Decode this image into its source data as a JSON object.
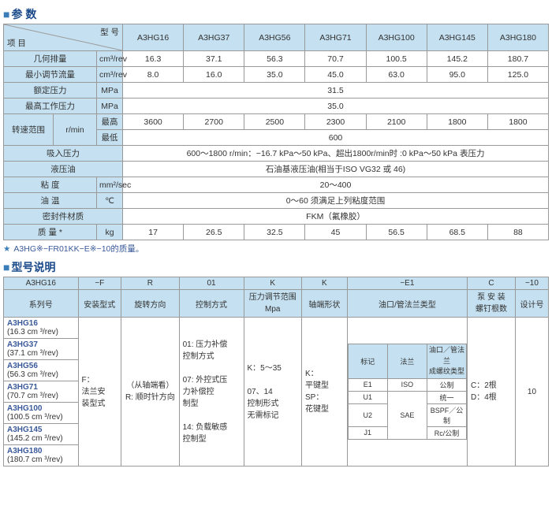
{
  "section1_title": "参 数",
  "t1": {
    "diag_top": "型 号",
    "diag_bot": "项 目",
    "models": [
      "A3HG16",
      "A3HG37",
      "A3HG56",
      "A3HG71",
      "A3HG100",
      "A3HG145",
      "A3HG180"
    ],
    "rows": {
      "geom_disp": {
        "label": "几何排量",
        "unit": "cm³/rev",
        "vals": [
          "16.3",
          "37.1",
          "56.3",
          "70.7",
          "100.5",
          "145.2",
          "180.7"
        ]
      },
      "min_adj": {
        "label": "最小调节流量",
        "unit": "cm³/rev",
        "vals": [
          "8.0",
          "16.0",
          "35.0",
          "45.0",
          "63.0",
          "95.0",
          "125.0"
        ]
      },
      "rated_p": {
        "label": "额定压力",
        "unit": "MPa",
        "val": "31.5"
      },
      "max_p": {
        "label": "最高工作压力",
        "unit": "MPa",
        "val": "35.0"
      },
      "speed": {
        "label": "转速范围",
        "unit": "r/min",
        "sub_hi": "最高",
        "sub_lo": "最低",
        "hi": [
          "3600",
          "2700",
          "2500",
          "2300",
          "2100",
          "1800",
          "1800"
        ],
        "lo": "600"
      },
      "suction": {
        "label": "吸入压力",
        "val": "600～1800 r/min：−16.7 kPa～50 kPa、超出1800r/min时 :0 kPa～50 kPa 表压力"
      },
      "oil": {
        "label": "液压油",
        "val": "石油基液压油(相当于ISO VG32 或 46)"
      },
      "visc": {
        "label": "粘  度",
        "unit": "mm²/sec",
        "val": "20～400"
      },
      "temp": {
        "label": "油  温",
        "unit": "℃",
        "val": "0～60 须满足上列粘度范围"
      },
      "seal": {
        "label": "密封件材质",
        "val": "FKM（氟橡胶）"
      },
      "mass": {
        "label": "质  量 *",
        "unit": "kg",
        "vals": [
          "17",
          "26.5",
          "32.5",
          "45",
          "56.5",
          "68.5",
          "88"
        ]
      }
    }
  },
  "footnote": "A3HG※−FR01KK−E※−10的质量。",
  "section2_title": "型号说明",
  "t2": {
    "headers": [
      "A3HG16",
      "−F",
      "R",
      "01",
      "K",
      "K",
      "−E1",
      "C",
      "−10"
    ],
    "row2": [
      "系列号",
      "安装型式",
      "旋转方向",
      "控制方式",
      "压力调节范围\nMpa",
      "轴端形状",
      "油口/管法兰类型",
      "泵 安 装\n螺钉根数",
      "设计号"
    ],
    "series": [
      {
        "n": "A3HG16",
        "s": "(16.3 cm ³/rev)"
      },
      {
        "n": "A3HG37",
        "s": "(37.1 cm ³/rev)"
      },
      {
        "n": "A3HG56",
        "s": "(56.3 cm ³/rev)"
      },
      {
        "n": "A3HG71",
        "s": "(70.7 cm ³/rev)"
      },
      {
        "n": "A3HG100",
        "s": "(100.5 cm ³/rev)"
      },
      {
        "n": "A3HG145",
        "s": "(145.2 cm ³/rev)"
      },
      {
        "n": "A3HG180",
        "s": "(180.7 cm ³/rev)"
      }
    ],
    "mount": "F：\n法兰安\n装型式",
    "rot": "（从轴端看）\nR: 顺时针方向",
    "ctrl": "01: 压力补偿\n控制方式\n\n07: 外控式压\n力补偿控\n制型\n\n14: 负载敏感\n控制型",
    "press": "K：5～35\n\n07、14\n控制形式\n无需标记",
    "shaft": "K：\n平键型\nSP：\n花键型",
    "port_inner_hdr": [
      "标记",
      "法兰",
      "油口／管法兰\n成螺纹类型"
    ],
    "port_inner": [
      [
        "E1",
        "ISO",
        "公制"
      ],
      [
        "U1",
        "",
        "统一"
      ],
      [
        "U2",
        "SAE",
        "BSPF／公制"
      ],
      [
        "J1",
        "",
        "Rc/公制"
      ]
    ],
    "bolts": "C：2根\nD：4根",
    "design": "10"
  }
}
